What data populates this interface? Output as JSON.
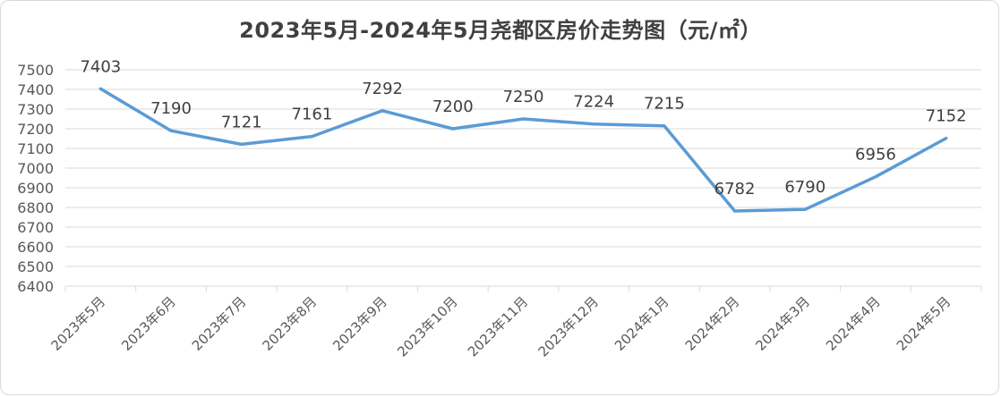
{
  "chart_data": {
    "type": "line",
    "title": "2023年5月-2024年5月尧都区房价走势图（元/㎡）",
    "categories": [
      "2023年5月",
      "2023年6月",
      "2023年7月",
      "2023年8月",
      "2023年9月",
      "2023年10月",
      "2023年11月",
      "2023年12月",
      "2024年1月",
      "2024年2月",
      "2024年3月",
      "2024年4月",
      "2024年5月"
    ],
    "series": [
      {
        "values": [
          7403,
          7190,
          7121,
          7161,
          7292,
          7200,
          7250,
          7224,
          7215,
          6782,
          6790,
          6956,
          7152
        ]
      }
    ],
    "ylim": [
      6400,
      7500
    ],
    "ytick_step": 100,
    "grid": true,
    "legend": "none",
    "xlabel": "",
    "ylabel": "",
    "line_color": "#5b9bd5",
    "grid_color": "#d9d9d9"
  }
}
